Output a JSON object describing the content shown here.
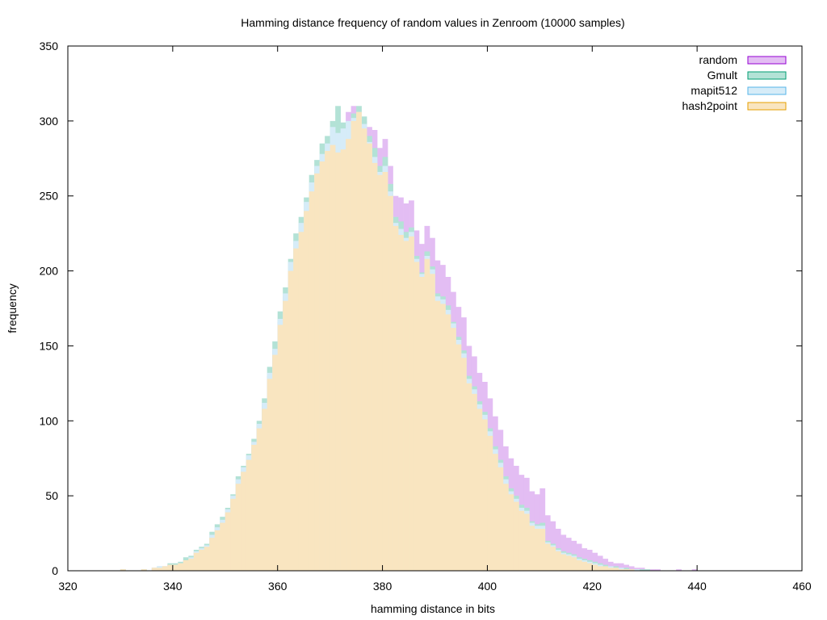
{
  "chart_data": {
    "type": "histogram",
    "title": "Hamming distance frequency of random values in Zenroom (10000 samples)",
    "xlabel": "hamming distance in bits",
    "ylabel": "frequency",
    "xlim": [
      320,
      460
    ],
    "ylim": [
      0,
      350
    ],
    "x_ticks": [
      320,
      340,
      360,
      380,
      400,
      420,
      440,
      460
    ],
    "y_ticks": [
      0,
      50,
      100,
      150,
      200,
      250,
      300,
      350
    ],
    "bin_start": 326,
    "bin_width": 1,
    "legend_position": "top-right",
    "series": [
      {
        "name": "random",
        "fill": "#e3bdf3",
        "stroke": "#9400d3",
        "values": [
          0,
          0,
          0,
          0,
          1,
          0,
          0,
          0,
          1,
          0,
          2,
          3,
          3,
          4,
          4,
          5,
          7,
          8,
          12,
          14,
          17,
          22,
          25,
          30,
          38,
          46,
          53,
          62,
          73,
          82,
          96,
          111,
          130,
          147,
          166,
          183,
          200,
          213,
          226,
          238,
          250,
          263,
          270,
          277,
          283,
          286,
          293,
          306,
          310,
          300,
          300,
          296,
          294,
          282,
          288,
          270,
          250,
          249,
          245,
          247,
          227,
          218,
          230,
          222,
          207,
          204,
          196,
          186,
          176,
          169,
          150,
          143,
          132,
          126,
          115,
          103,
          94,
          83,
          75,
          70,
          64,
          62,
          53,
          51,
          55,
          37,
          33,
          28,
          24,
          22,
          20,
          18,
          15,
          14,
          12,
          10,
          8,
          6,
          5,
          5,
          4,
          3,
          2,
          2,
          1,
          1,
          1,
          0,
          0,
          0,
          1,
          0,
          0,
          1,
          0,
          0,
          0,
          0,
          0,
          0,
          0
        ]
      },
      {
        "name": "Gmult",
        "fill": "#b3e2d6",
        "stroke": "#009e73",
        "values": [
          0,
          0,
          0,
          0,
          1,
          0,
          0,
          0,
          1,
          0,
          2,
          3,
          3,
          5,
          5,
          6,
          9,
          10,
          14,
          16,
          18,
          26,
          31,
          36,
          42,
          51,
          63,
          70,
          78,
          88,
          100,
          115,
          136,
          153,
          173,
          189,
          208,
          225,
          236,
          249,
          264,
          274,
          285,
          290,
          300,
          310,
          299,
          298,
          305,
          310,
          303,
          290,
          282,
          270,
          276,
          258,
          236,
          233,
          226,
          229,
          210,
          199,
          213,
          203,
          185,
          183,
          177,
          166,
          156,
          147,
          130,
          123,
          113,
          106,
          95,
          83,
          74,
          63,
          55,
          50,
          44,
          42,
          33,
          31,
          32,
          20,
          18,
          15,
          13,
          12,
          11,
          9,
          8,
          7,
          6,
          5,
          4,
          3,
          3,
          2,
          2,
          1,
          1,
          1,
          1,
          0,
          0,
          0,
          0,
          0,
          0,
          0,
          0,
          0,
          0,
          0,
          0,
          0,
          0,
          0,
          0
        ]
      },
      {
        "name": "mapit512",
        "fill": "#d6ecf8",
        "stroke": "#56b4e9",
        "values": [
          0,
          0,
          0,
          0,
          1,
          0,
          0,
          0,
          1,
          0,
          2,
          3,
          3,
          4,
          4,
          5,
          7,
          9,
          13,
          15,
          17,
          24,
          29,
          34,
          41,
          50,
          61,
          69,
          77,
          86,
          98,
          112,
          132,
          148,
          168,
          185,
          206,
          220,
          232,
          246,
          259,
          270,
          278,
          285,
          296,
          292,
          295,
          300,
          302,
          306,
          298,
          286,
          276,
          266,
          270,
          253,
          232,
          228,
          222,
          226,
          208,
          198,
          210,
          201,
          183,
          181,
          174,
          165,
          154,
          145,
          128,
          121,
          111,
          104,
          93,
          81,
          72,
          61,
          53,
          48,
          42,
          40,
          32,
          30,
          30,
          19,
          17,
          14,
          12,
          11,
          10,
          8,
          7,
          6,
          5,
          4,
          3,
          3,
          2,
          2,
          1,
          1,
          1,
          0,
          0,
          0,
          0,
          0,
          0,
          0,
          0,
          0,
          0,
          0,
          0,
          0,
          0,
          0,
          0,
          0,
          0
        ]
      },
      {
        "name": "hash2point",
        "fill": "#f9e5c0",
        "stroke": "#e69f00",
        "values": [
          0,
          0,
          0,
          0,
          1,
          0,
          0,
          0,
          1,
          0,
          2,
          2,
          3,
          4,
          4,
          5,
          7,
          8,
          12,
          14,
          16,
          22,
          27,
          32,
          39,
          48,
          58,
          66,
          74,
          84,
          95,
          108,
          128,
          144,
          164,
          180,
          200,
          215,
          226,
          240,
          253,
          265,
          273,
          280,
          284,
          279,
          281,
          288,
          300,
          306,
          295,
          285,
          272,
          264,
          266,
          250,
          230,
          224,
          220,
          223,
          206,
          196,
          208,
          198,
          180,
          178,
          171,
          162,
          151,
          142,
          125,
          118,
          108,
          101,
          90,
          78,
          69,
          58,
          51,
          46,
          40,
          38,
          30,
          28,
          28,
          18,
          16,
          13,
          11,
          10,
          9,
          7,
          6,
          5,
          4,
          3,
          3,
          2,
          2,
          1,
          1,
          1,
          0,
          0,
          0,
          0,
          0,
          0,
          0,
          0,
          0,
          0,
          0,
          0,
          0,
          0,
          0,
          0,
          0,
          0,
          0
        ]
      }
    ]
  }
}
